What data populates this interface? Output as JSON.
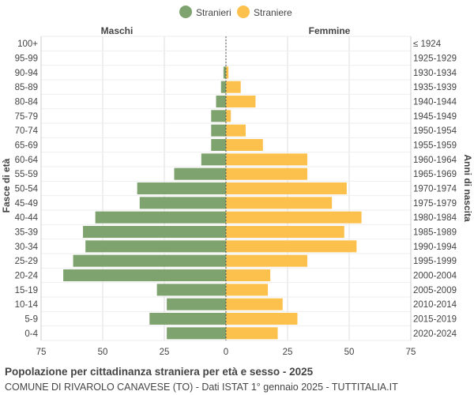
{
  "chart_data": {
    "type": "bar",
    "orientation": "horizontal-pyramid",
    "legend": [
      {
        "name": "Stranieri",
        "color": "#7fa36e"
      },
      {
        "name": "Straniere",
        "color": "#fcc04c"
      }
    ],
    "left_header": "Maschi",
    "right_header": "Femmine",
    "ylabel_left": "Fasce di età",
    "ylabel_right": "Anni di nascita",
    "age_groups": [
      "100+",
      "95-99",
      "90-94",
      "85-89",
      "80-84",
      "75-79",
      "70-74",
      "65-69",
      "60-64",
      "55-59",
      "50-54",
      "45-49",
      "40-44",
      "35-39",
      "30-34",
      "25-29",
      "20-24",
      "15-19",
      "10-14",
      "5-9",
      "0-4"
    ],
    "birth_years": [
      "≤ 1924",
      "1925-1929",
      "1930-1934",
      "1935-1939",
      "1940-1944",
      "1945-1949",
      "1950-1954",
      "1955-1959",
      "1960-1964",
      "1965-1969",
      "1970-1974",
      "1975-1979",
      "1980-1984",
      "1985-1989",
      "1990-1994",
      "1995-1999",
      "2000-2004",
      "2005-2009",
      "2010-2014",
      "2015-2019",
      "2020-2024"
    ],
    "series": [
      {
        "name": "Stranieri",
        "values": [
          0,
          0,
          1,
          2,
          4,
          6,
          6,
          6,
          10,
          21,
          36,
          35,
          53,
          58,
          57,
          62,
          66,
          28,
          24,
          31,
          24
        ]
      },
      {
        "name": "Straniere",
        "values": [
          0,
          0,
          1,
          6,
          12,
          2,
          8,
          15,
          33,
          33,
          49,
          43,
          55,
          48,
          53,
          33,
          18,
          17,
          23,
          29,
          21
        ]
      }
    ],
    "x_ticks": [
      "75",
      "50",
      "25",
      "0",
      "25",
      "50",
      "75"
    ],
    "xlim": [
      -75,
      75
    ],
    "grid": true,
    "title": "Popolazione per cittadinanza straniera per età e sesso - 2025",
    "subtitle": "COMUNE DI RIVAROLO CANAVESE (TO) - Dati ISTAT 1° gennaio 2025 - TUTTITALIA.IT"
  }
}
